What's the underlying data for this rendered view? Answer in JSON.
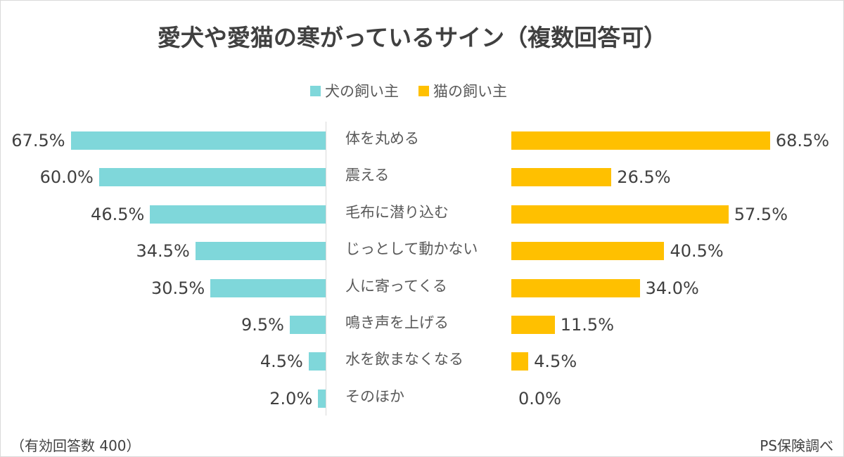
{
  "chart_data": {
    "type": "bar",
    "orientation": "horizontal-butterfly",
    "title": "愛犬や愛猫の寒がっているサイン（複数回答可）",
    "legend_position": "top",
    "categories": [
      "体を丸める",
      "震える",
      "毛布に潜り込む",
      "じっとして動かない",
      "人に寄ってくる",
      "鳴き声を上げる",
      "水を飲まなくなる",
      "そのほか"
    ],
    "series": [
      {
        "name": "犬の飼い主",
        "color": "#7fd7da",
        "values": [
          67.5,
          60.0,
          46.5,
          34.5,
          30.5,
          9.5,
          4.5,
          2.0
        ],
        "labels": [
          "67.5%",
          "60.0%",
          "46.5%",
          "34.5%",
          "30.5%",
          "9.5%",
          "4.5%",
          "2.0%"
        ]
      },
      {
        "name": "猫の飼い主",
        "color": "#ffc000",
        "values": [
          68.5,
          26.5,
          57.5,
          40.5,
          34.0,
          11.5,
          4.5,
          0.0
        ],
        "labels": [
          "68.5%",
          "26.5%",
          "57.5%",
          "40.5%",
          "34.0%",
          "11.5%",
          "4.5%",
          "0.0%"
        ]
      }
    ],
    "unit": "%",
    "grid": false
  },
  "footer": {
    "note": "（有効回答数 400）",
    "source": "PS保険調べ"
  }
}
